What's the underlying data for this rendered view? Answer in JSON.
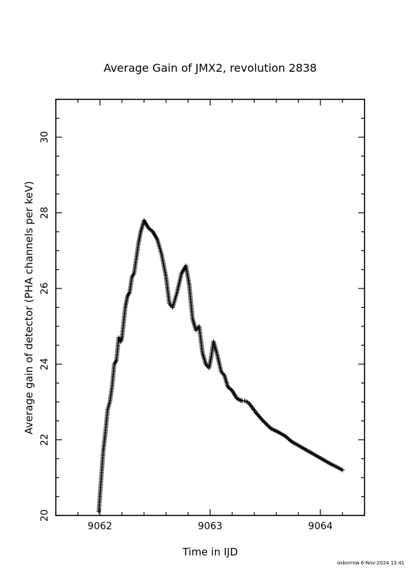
{
  "footer": "oxborrow  6-Nov-2024 13:41",
  "chart_data": {
    "type": "scatter",
    "title": "Average Gain of JMX2, revolution 2838",
    "xlabel": "Time in IJD",
    "ylabel": "Average gain of detector (PHA channels per keV)",
    "xlim": [
      9061.6,
      9064.4
    ],
    "ylim": [
      20,
      31
    ],
    "x_ticks": [
      "9062",
      "9063",
      "9064"
    ],
    "y_ticks": [
      "20",
      "22",
      "24",
      "26",
      "28",
      "30"
    ],
    "marker": "plus",
    "marker_color": "#000000",
    "grid": false,
    "legend": "none",
    "series": [
      {
        "x": [
          9061.99,
          9062.01,
          9062.03,
          9062.05,
          9062.07,
          9062.09,
          9062.11,
          9062.13,
          9062.15,
          9062.17,
          9062.19,
          9062.2,
          9062.23,
          9062.25,
          9062.27,
          9062.29,
          9062.31,
          9062.33,
          9062.35,
          9062.37,
          9062.4,
          9062.44,
          9062.48,
          9062.52,
          9062.56,
          9062.6,
          9062.63,
          9062.66,
          9062.7,
          9062.74,
          9062.78,
          9062.81,
          9062.84,
          9062.87,
          9062.9,
          9062.93,
          9062.96,
          9062.99,
          9063.01,
          9063.03,
          9063.06,
          9063.1,
          9063.13,
          9063.16,
          9063.2,
          9063.24,
          9063.27,
          9063.29,
          9063.31,
          9063.34,
          9063.37,
          9063.42,
          9063.48,
          9063.55,
          9063.62,
          9063.68,
          9063.74,
          9063.8,
          9063.86,
          9063.92,
          9063.98,
          9064.04,
          9064.1,
          9064.15,
          9064.2
        ],
        "y": [
          20.1,
          20.9,
          21.7,
          22.2,
          22.8,
          23.0,
          23.4,
          24.0,
          24.1,
          24.7,
          24.6,
          24.7,
          25.5,
          25.8,
          25.9,
          26.3,
          26.4,
          26.8,
          27.2,
          27.5,
          27.8,
          27.6,
          27.5,
          27.3,
          26.9,
          26.3,
          25.6,
          25.5,
          25.9,
          26.4,
          26.6,
          26.1,
          25.2,
          24.9,
          25.0,
          24.3,
          24.0,
          23.9,
          24.2,
          24.6,
          24.3,
          23.8,
          23.7,
          23.4,
          23.3,
          23.1,
          23.05,
          23.03,
          23.03,
          23.0,
          22.9,
          22.7,
          22.5,
          22.3,
          22.2,
          22.1,
          21.95,
          21.85,
          21.75,
          21.65,
          21.55,
          21.45,
          21.35,
          21.28,
          21.2
        ]
      }
    ]
  }
}
